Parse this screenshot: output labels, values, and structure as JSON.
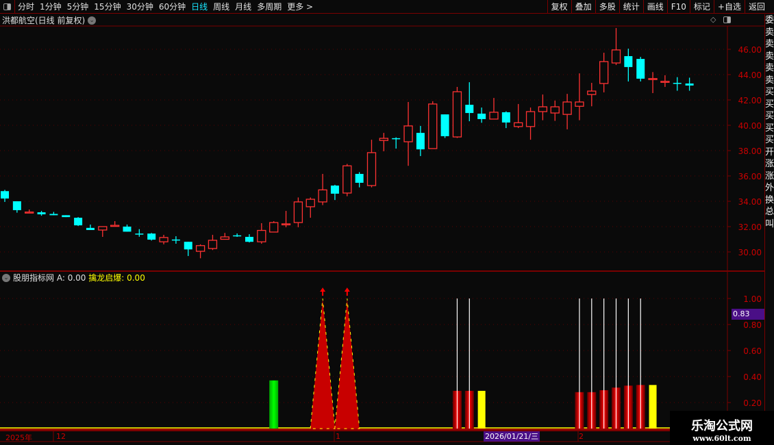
{
  "topbar": {
    "periods": [
      "分时",
      "1分钟",
      "5分钟",
      "15分钟",
      "30分钟",
      "60分钟",
      "日线",
      "周线",
      "月线",
      "多周期",
      "更多 >"
    ],
    "active_period": "日线",
    "buttons": [
      "复权",
      "叠加",
      "多股",
      "统计",
      "画线",
      "F10",
      "标记",
      "+自选",
      "返回"
    ]
  },
  "main": {
    "title": "洪都航空(日线 前复权)",
    "price_ticks": [
      "46.00",
      "44.00",
      "42.00",
      "40.00",
      "38.00",
      "36.00",
      "34.00",
      "32.00",
      "30.00"
    ]
  },
  "indicator": {
    "name": "股朋指标网",
    "a_label": "A: 0.00",
    "b_label": "擒龙启爆: 0.00",
    "ticks": [
      "1.00",
      "0.80",
      "0.60",
      "0.40",
      "0.20"
    ],
    "current_value": "0.83"
  },
  "date_axis": {
    "labels": [
      "2025年",
      "12",
      "1",
      "2"
    ],
    "cursor_date": "2026/01/21/三"
  },
  "right_strip": [
    "委",
    "卖",
    "卖",
    "卖",
    "卖",
    "卖",
    "买",
    "买",
    "买",
    "买",
    "买",
    "开",
    "涨",
    "涨",
    "外",
    "换",
    "总",
    "叫"
  ],
  "watermark": {
    "line1": "乐淘公式网",
    "line2": "www.60lt.com"
  },
  "colors": {
    "up": "#ff3232",
    "down": "#00ffff",
    "grid": "#7a0000",
    "axis_text": "#cc0000",
    "green": "#00ee00",
    "yellow": "#ffff00",
    "dark_red": "#c80000"
  },
  "chart_data": [
    {
      "type": "candlestick",
      "ylim": [
        29.5,
        47.8
      ],
      "ohlc": [
        [
          34.8,
          34.9,
          33.95,
          34.22
        ],
        [
          34.0,
          34.0,
          33.1,
          33.3
        ],
        [
          33.1,
          33.35,
          33.1,
          33.15
        ],
        [
          33.13,
          33.24,
          32.86,
          32.97
        ],
        [
          33.0,
          33.16,
          32.9,
          32.9
        ],
        [
          32.9,
          32.9,
          32.75,
          32.75
        ],
        [
          32.7,
          32.75,
          32.05,
          32.1
        ],
        [
          31.9,
          32.16,
          31.73,
          31.73
        ],
        [
          31.73,
          32.0,
          31.19,
          32.0
        ],
        [
          32.05,
          32.43,
          32.05,
          32.1
        ],
        [
          32.0,
          32.16,
          31.6,
          31.6
        ],
        [
          31.45,
          31.8,
          31.2,
          31.44
        ],
        [
          31.45,
          31.5,
          30.9,
          30.97
        ],
        [
          30.8,
          31.35,
          30.6,
          31.14
        ],
        [
          30.98,
          31.24,
          30.65,
          30.97
        ],
        [
          30.8,
          30.8,
          29.68,
          30.2
        ],
        [
          30.05,
          30.6,
          29.5,
          30.5
        ],
        [
          30.27,
          31.35,
          30.15,
          30.92
        ],
        [
          31.0,
          31.5,
          31.0,
          31.19
        ],
        [
          31.31,
          31.46,
          31.19,
          31.3
        ],
        [
          31.19,
          31.4,
          30.75,
          30.8
        ],
        [
          30.8,
          32.27,
          30.65,
          31.7
        ],
        [
          31.57,
          32.43,
          31.57,
          32.32
        ],
        [
          32.2,
          33.24,
          31.95,
          32.22
        ],
        [
          32.32,
          34.3,
          31.95,
          33.95
        ],
        [
          33.57,
          34.3,
          32.7,
          34.16
        ],
        [
          33.95,
          36.16,
          33.7,
          34.9
        ],
        [
          35.24,
          35.3,
          34.1,
          34.6
        ],
        [
          34.65,
          36.95,
          34.4,
          36.8
        ],
        [
          36.16,
          36.3,
          35.1,
          35.46
        ],
        [
          35.24,
          38.86,
          35.1,
          37.84
        ],
        [
          38.8,
          39.4,
          37.95,
          38.97
        ],
        [
          38.98,
          39.05,
          38.16,
          38.97
        ],
        [
          38.7,
          41.84,
          36.8,
          39.95
        ],
        [
          39.4,
          39.95,
          37.57,
          38.1
        ],
        [
          38.16,
          41.9,
          38.16,
          41.68
        ],
        [
          40.86,
          40.86,
          39.0,
          39.14
        ],
        [
          39.08,
          43.03,
          39.0,
          42.65
        ],
        [
          41.62,
          43.4,
          40.32,
          40.97
        ],
        [
          40.92,
          41.4,
          40.2,
          40.49
        ],
        [
          40.49,
          42.16,
          40.49,
          41.03
        ],
        [
          41.03,
          41.1,
          39.78,
          40.22
        ],
        [
          39.9,
          41.68,
          39.78,
          40.2
        ],
        [
          39.9,
          41.4,
          38.86,
          41.08
        ],
        [
          41.08,
          42.43,
          40.4,
          41.46
        ],
        [
          40.97,
          41.95,
          40.35,
          41.46
        ],
        [
          40.86,
          42.48,
          39.68,
          41.84
        ],
        [
          41.5,
          44.1,
          40.4,
          41.84
        ],
        [
          42.43,
          43.35,
          41.5,
          42.7
        ],
        [
          43.3,
          45.73,
          42.6,
          45.03
        ],
        [
          44.92,
          47.68,
          44.76,
          45.95
        ],
        [
          45.46,
          46.05,
          43.46,
          44.6
        ],
        [
          45.24,
          45.4,
          43.46,
          43.68
        ],
        [
          43.68,
          44.2,
          42.54,
          43.69
        ],
        [
          43.46,
          43.95,
          43.03,
          43.47
        ],
        [
          43.35,
          43.8,
          42.73,
          43.34
        ],
        [
          43.3,
          43.76,
          42.73,
          43.14
        ]
      ]
    },
    {
      "type": "bar",
      "ylim": [
        0,
        1.0
      ],
      "green_bars": [
        {
          "index": 22,
          "value": 0.37
        }
      ],
      "triangles": [
        {
          "index": 26,
          "value": 1.0,
          "arrow": true
        },
        {
          "index": 28,
          "value": 1.0,
          "arrow": true
        }
      ],
      "red_bars": [
        {
          "index": 37,
          "value": 0.29,
          "line": 1.0
        },
        {
          "index": 38,
          "value": 0.29,
          "line": 1.0
        },
        {
          "index": 47,
          "value": 0.28,
          "line": 1.0
        },
        {
          "index": 48,
          "value": 0.28,
          "line": 1.0
        },
        {
          "index": 49,
          "value": 0.295,
          "line": 1.0
        },
        {
          "index": 50,
          "value": 0.315,
          "line": 1.0
        },
        {
          "index": 51,
          "value": 0.33,
          "line": 1.0
        },
        {
          "index": 52,
          "value": 0.335,
          "line": 1.0
        }
      ],
      "yellow_bars": [
        {
          "index": 39,
          "value": 0.29
        },
        {
          "index": 53,
          "value": 0.335
        }
      ]
    }
  ]
}
